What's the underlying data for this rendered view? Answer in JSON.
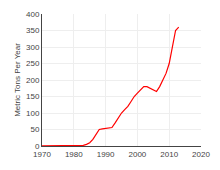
{
  "chart_data": {
    "type": "line",
    "ylabel": "Metric Tons Per Year",
    "x": [
      1970,
      1971,
      1972,
      1973,
      1974,
      1975,
      1976,
      1977,
      1978,
      1979,
      1980,
      1981,
      1982,
      1983,
      1984,
      1985,
      1986,
      1987,
      1988,
      1989,
      1990,
      1991,
      1992,
      1993,
      1994,
      1995,
      1996,
      1997,
      1998,
      1999,
      2000,
      2001,
      2002,
      2003,
      2004,
      2005,
      2006,
      2007,
      2008,
      2009,
      2010,
      2011,
      2012,
      2013
    ],
    "values": [
      0.2,
      0.2,
      0.2,
      0.2,
      0.2,
      0.2,
      0.2,
      0.2,
      0.2,
      0.2,
      0.2,
      0.2,
      1.0,
      2.0,
      5.0,
      10.0,
      20.0,
      35.0,
      50.0,
      52.0,
      54.0,
      55.0,
      56.0,
      70.0,
      85.0,
      100.0,
      110.0,
      120.0,
      135.0,
      150.0,
      160.0,
      170.0,
      180.0,
      180.0,
      175.0,
      170.0,
      165.0,
      180.0,
      200.0,
      220.0,
      250.0,
      300.0,
      350.0,
      360.0
    ],
    "color": "#ff0000",
    "xlim": [
      1970,
      2020
    ],
    "ylim": [
      0,
      400
    ],
    "xticks": [
      1970,
      1980,
      1990,
      2000,
      2010,
      2020
    ],
    "yticks": [
      0,
      50,
      100,
      150,
      200,
      250,
      300,
      350,
      400
    ],
    "grid": true
  }
}
